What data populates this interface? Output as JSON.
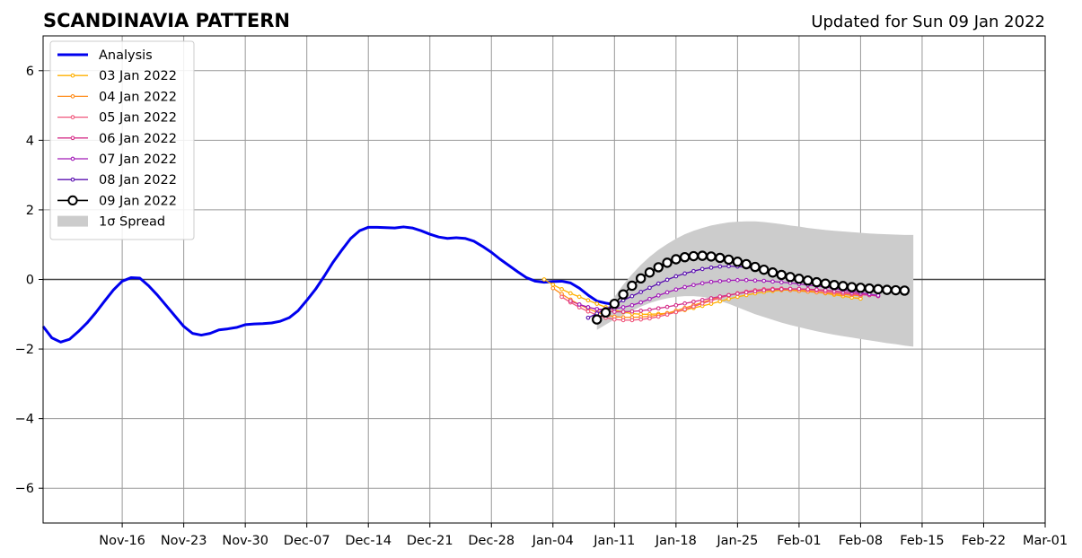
{
  "chart_data": {
    "type": "line",
    "title": "SCANDINAVIA PATTERN",
    "subtitle": "Updated for Sun 09 Jan 2022",
    "xlabel": "",
    "ylabel": "",
    "xlim": [
      "2021-11-07",
      "2022-03-01"
    ],
    "ylim": [
      -7,
      7
    ],
    "yticks": [
      -6,
      -4,
      -2,
      0,
      2,
      4,
      6
    ],
    "xticks": [
      {
        "date": "2021-11-16",
        "label": "Nov-16"
      },
      {
        "date": "2021-11-23",
        "label": "Nov-23"
      },
      {
        "date": "2021-11-30",
        "label": "Nov-30"
      },
      {
        "date": "2021-12-07",
        "label": "Dec-07"
      },
      {
        "date": "2021-12-14",
        "label": "Dec-14"
      },
      {
        "date": "2021-12-21",
        "label": "Dec-21"
      },
      {
        "date": "2021-12-28",
        "label": "Dec-28"
      },
      {
        "date": "2022-01-04",
        "label": "Jan-04"
      },
      {
        "date": "2022-01-11",
        "label": "Jan-11"
      },
      {
        "date": "2022-01-18",
        "label": "Jan-18"
      },
      {
        "date": "2022-01-25",
        "label": "Jan-25"
      },
      {
        "date": "2022-02-01",
        "label": "Feb-01"
      },
      {
        "date": "2022-02-08",
        "label": "Feb-08"
      },
      {
        "date": "2022-02-15",
        "label": "Feb-15"
      },
      {
        "date": "2022-02-22",
        "label": "Feb-22"
      },
      {
        "date": "2022-03-01",
        "label": "Mar-01"
      }
    ],
    "grid": true,
    "legend_position": "top-left",
    "colors": {
      "analysis": "#0000ee",
      "spread": "#cccccc",
      "zero_line": "#444444",
      "grid": "#999999"
    },
    "analysis": {
      "name": "Analysis",
      "start": "2021-11-07",
      "values": [
        -1.35,
        -1.68,
        -1.8,
        -1.72,
        -1.5,
        -1.25,
        -0.95,
        -0.62,
        -0.3,
        -0.05,
        0.05,
        0.04,
        -0.18,
        -0.45,
        -0.75,
        -1.05,
        -1.35,
        -1.55,
        -1.6,
        -1.55,
        -1.45,
        -1.42,
        -1.38,
        -1.3,
        -1.28,
        -1.27,
        -1.25,
        -1.2,
        -1.1,
        -0.9,
        -0.6,
        -0.28,
        0.1,
        0.5,
        0.85,
        1.18,
        1.4,
        1.5,
        1.5,
        1.49,
        1.48,
        1.51,
        1.48,
        1.4,
        1.3,
        1.22,
        1.18,
        1.2,
        1.18,
        1.1,
        0.95,
        0.78,
        0.58,
        0.4,
        0.22,
        0.05,
        -0.05,
        -0.08,
        -0.06,
        -0.05,
        -0.1,
        -0.25,
        -0.45,
        -0.62,
        -0.68,
        -0.72
      ]
    },
    "forecasts": [
      {
        "name": "03 Jan 2022",
        "color": "#ffb000",
        "start": "2022-01-03",
        "values": [
          0.0,
          -0.15,
          -0.28,
          -0.4,
          -0.5,
          -0.6,
          -0.7,
          -0.8,
          -0.88,
          -0.94,
          -0.98,
          -1.0,
          -1.0,
          -0.99,
          -0.97,
          -0.93,
          -0.88,
          -0.82,
          -0.76,
          -0.7,
          -0.63,
          -0.56,
          -0.5,
          -0.45,
          -0.4,
          -0.36,
          -0.33,
          -0.31,
          -0.3,
          -0.31,
          -0.33,
          -0.36,
          -0.4,
          -0.44,
          -0.48,
          -0.52,
          -0.55
        ]
      },
      {
        "name": "04 Jan 2022",
        "color": "#ff8c1a",
        "start": "2022-01-04",
        "values": [
          -0.25,
          -0.42,
          -0.58,
          -0.72,
          -0.84,
          -0.94,
          -1.02,
          -1.07,
          -1.09,
          -1.09,
          -1.08,
          -1.06,
          -1.02,
          -0.97,
          -0.9,
          -0.82,
          -0.74,
          -0.66,
          -0.58,
          -0.51,
          -0.45,
          -0.4,
          -0.36,
          -0.33,
          -0.31,
          -0.3,
          -0.3,
          -0.31,
          -0.33,
          -0.35,
          -0.37,
          -0.39,
          -0.41,
          -0.43,
          -0.45,
          -0.47
        ]
      },
      {
        "name": "05 Jan 2022",
        "color": "#f0557a",
        "start": "2022-01-05",
        "values": [
          -0.5,
          -0.66,
          -0.8,
          -0.92,
          -1.02,
          -1.1,
          -1.15,
          -1.17,
          -1.17,
          -1.15,
          -1.12,
          -1.07,
          -1.01,
          -0.94,
          -0.86,
          -0.78,
          -0.69,
          -0.61,
          -0.53,
          -0.46,
          -0.4,
          -0.35,
          -0.31,
          -0.28,
          -0.27,
          -0.26,
          -0.27,
          -0.28,
          -0.3,
          -0.32,
          -0.35,
          -0.37,
          -0.4,
          -0.42,
          -0.44,
          -0.45
        ]
      },
      {
        "name": "06 Jan 2022",
        "color": "#d6308a",
        "start": "2022-01-06",
        "values": [
          -0.62,
          -0.72,
          -0.8,
          -0.86,
          -0.9,
          -0.93,
          -0.93,
          -0.92,
          -0.9,
          -0.87,
          -0.83,
          -0.79,
          -0.74,
          -0.69,
          -0.64,
          -0.59,
          -0.54,
          -0.49,
          -0.45,
          -0.41,
          -0.37,
          -0.34,
          -0.31,
          -0.29,
          -0.28,
          -0.27,
          -0.27,
          -0.28,
          -0.29,
          -0.31,
          -0.33,
          -0.36,
          -0.39,
          -0.42,
          -0.45,
          -0.48
        ]
      },
      {
        "name": "07 Jan 2022",
        "color": "#a21ab8",
        "start": "2022-01-07",
        "values": [
          -0.72,
          -0.8,
          -0.85,
          -0.86,
          -0.84,
          -0.8,
          -0.74,
          -0.66,
          -0.56,
          -0.46,
          -0.37,
          -0.29,
          -0.22,
          -0.16,
          -0.11,
          -0.07,
          -0.05,
          -0.03,
          -0.02,
          -0.02,
          -0.03,
          -0.04,
          -0.06,
          -0.08,
          -0.1,
          -0.13,
          -0.16,
          -0.19,
          -0.22,
          -0.26,
          -0.3,
          -0.34,
          -0.38,
          -0.42,
          -0.46
        ]
      },
      {
        "name": "08 Jan 2022",
        "color": "#5a0fb0",
        "start": "2022-01-08",
        "values": [
          -1.1,
          -0.98,
          -0.85,
          -0.72,
          -0.6,
          -0.48,
          -0.36,
          -0.24,
          -0.12,
          -0.01,
          0.09,
          0.17,
          0.24,
          0.3,
          0.34,
          0.37,
          0.38,
          0.37,
          0.35,
          0.31,
          0.27,
          0.22,
          0.16,
          0.1,
          0.04,
          -0.02,
          -0.08,
          -0.13,
          -0.18,
          -0.22,
          -0.26,
          -0.29,
          -0.32,
          -0.34,
          -0.36,
          -0.37
        ]
      },
      {
        "name": "09 Jan 2022",
        "color": "#000000",
        "start": "2022-01-09",
        "values": [
          -1.15,
          -0.95,
          -0.7,
          -0.43,
          -0.18,
          0.03,
          0.2,
          0.35,
          0.48,
          0.58,
          0.64,
          0.67,
          0.68,
          0.66,
          0.62,
          0.57,
          0.51,
          0.44,
          0.36,
          0.28,
          0.2,
          0.13,
          0.07,
          0.02,
          -0.03,
          -0.08,
          -0.12,
          -0.16,
          -0.19,
          -0.22,
          -0.24,
          -0.26,
          -0.28,
          -0.3,
          -0.31,
          -0.32
        ]
      }
    ],
    "spread": {
      "name": "1σ Spread",
      "start": "2022-01-09",
      "upper": [
        -1.3,
        -0.9,
        -0.5,
        -0.15,
        0.15,
        0.42,
        0.65,
        0.85,
        1.02,
        1.17,
        1.3,
        1.4,
        1.48,
        1.55,
        1.6,
        1.64,
        1.66,
        1.67,
        1.67,
        1.65,
        1.62,
        1.59,
        1.55,
        1.52,
        1.48,
        1.45,
        1.42,
        1.4,
        1.38,
        1.36,
        1.34,
        1.32,
        1.31,
        1.3,
        1.29,
        1.28,
        1.28
      ],
      "lower": [
        -1.45,
        -1.3,
        -1.15,
        -1.02,
        -0.9,
        -0.78,
        -0.68,
        -0.6,
        -0.54,
        -0.5,
        -0.48,
        -0.48,
        -0.5,
        -0.55,
        -0.62,
        -0.7,
        -0.8,
        -0.9,
        -1.0,
        -1.08,
        -1.16,
        -1.24,
        -1.31,
        -1.37,
        -1.43,
        -1.49,
        -1.54,
        -1.59,
        -1.63,
        -1.67,
        -1.71,
        -1.75,
        -1.79,
        -1.83,
        -1.86,
        -1.9,
        -1.93
      ]
    }
  }
}
